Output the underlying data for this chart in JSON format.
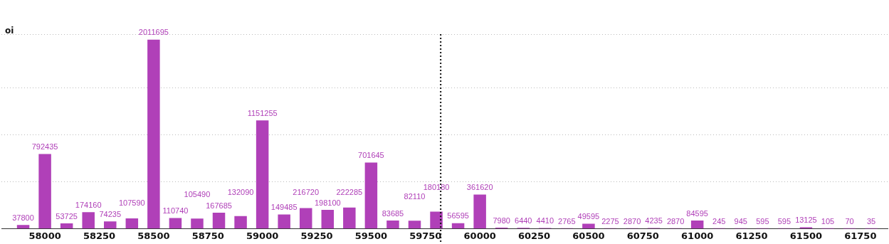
{
  "chart_data": {
    "type": "bar",
    "ylabel": "oi",
    "x": [
      57900,
      58000,
      58100,
      58200,
      58300,
      58400,
      58500,
      58600,
      58700,
      58800,
      58900,
      59000,
      59100,
      59200,
      59300,
      59400,
      59500,
      59600,
      59700,
      59800,
      59900,
      60000,
      60100,
      60200,
      60300,
      60400,
      60500,
      60600,
      60700,
      60800,
      60900,
      61000,
      61100,
      61200,
      61300,
      61400,
      61500,
      61600,
      61700,
      61800
    ],
    "values": [
      37800,
      792435,
      53725,
      174160,
      74235,
      107590,
      2011695,
      110740,
      105490,
      167685,
      132090,
      1151255,
      149485,
      216720,
      198100,
      222285,
      701645,
      83685,
      82110,
      180180,
      56595,
      361620,
      7980,
      6440,
      4410,
      2765,
      49595,
      2275,
      2870,
      4235,
      2870,
      84595,
      245,
      945,
      595,
      595,
      13125,
      105,
      70,
      35
    ],
    "color": "#b040b8",
    "data_labels": true,
    "xlim": [
      57800,
      61875
    ],
    "xticks": [
      58000,
      58250,
      58500,
      58750,
      59000,
      59250,
      59500,
      59750,
      60000,
      60250,
      60500,
      60750,
      61000,
      61250,
      61500,
      61750
    ],
    "tick_labels": "x",
    "grid": "y",
    "ref_lines": [
      {
        "axis": "x",
        "value": 59820,
        "color": "#111111",
        "line_style": "dotted"
      }
    ]
  }
}
